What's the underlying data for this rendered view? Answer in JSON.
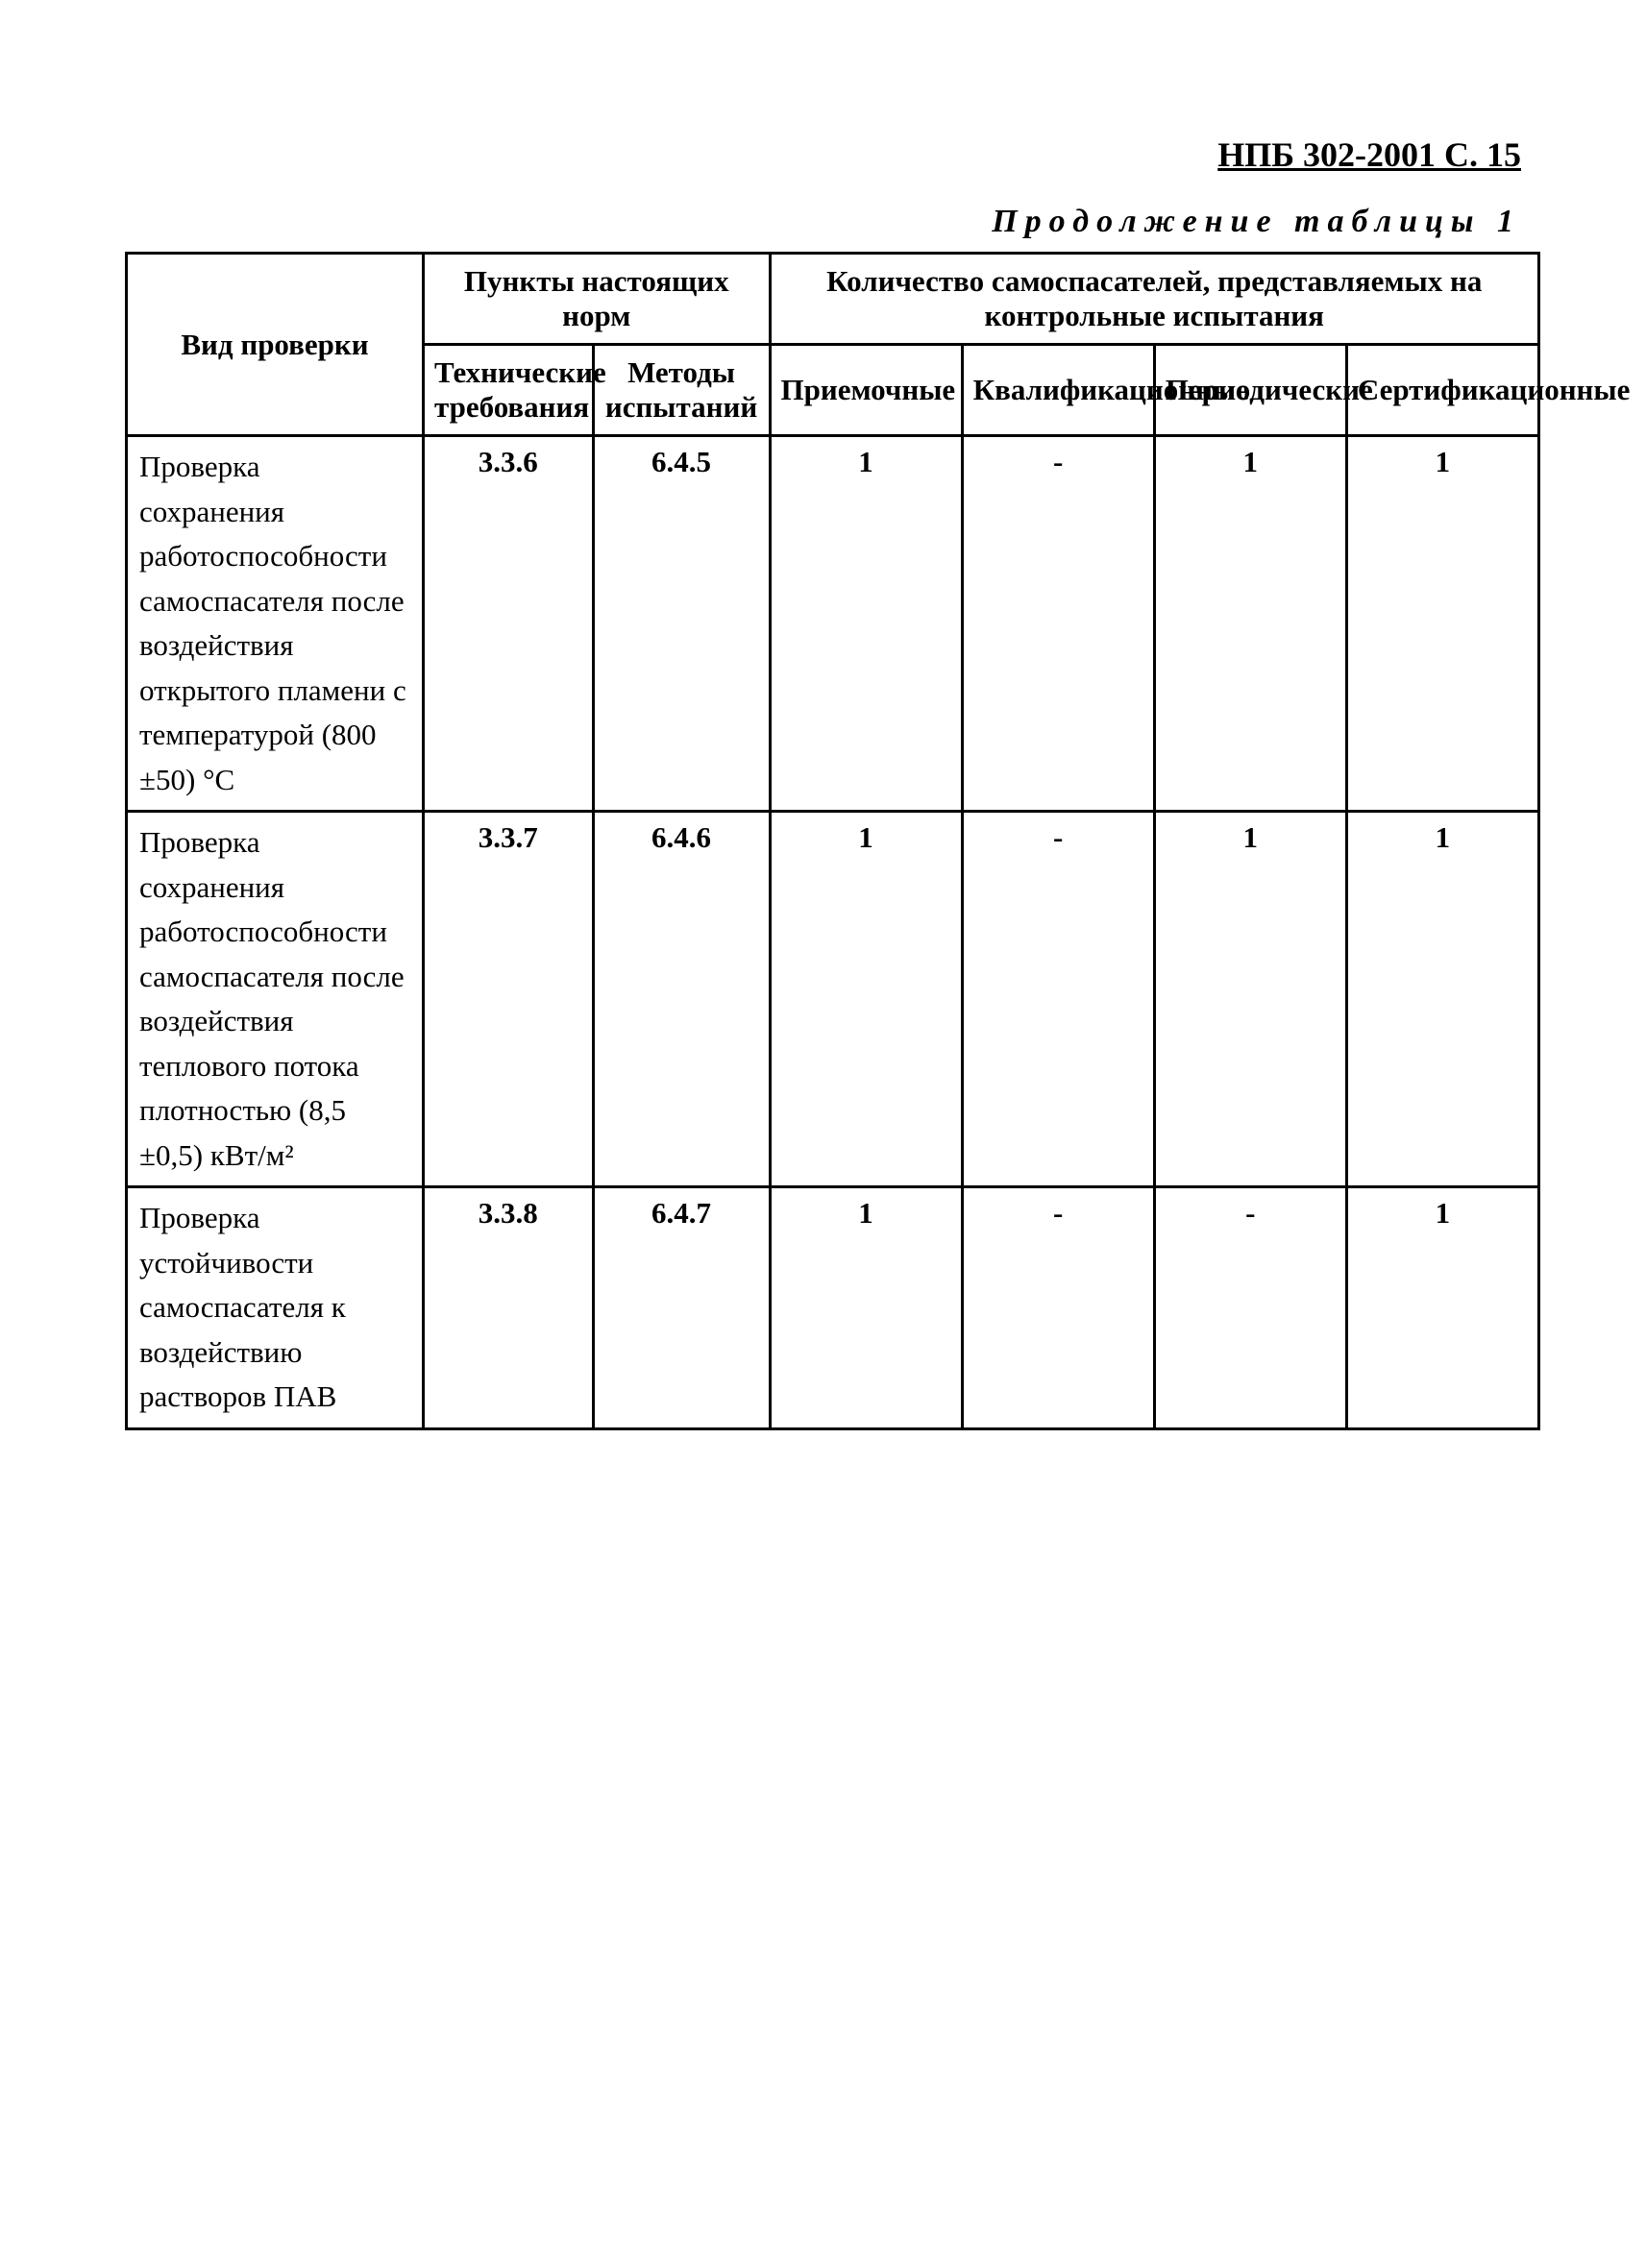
{
  "header": {
    "document_ref": "НПБ 302-2001 С. 15"
  },
  "table": {
    "caption": "Продолжение таблицы 1",
    "columns": {
      "vid": "Вид проверки",
      "group_norms": "Пункты настоящих норм",
      "group_tests": "Количество самоспасателей, представляемых на контрольные испытания",
      "tech": "Технические требования",
      "method": "Методы испытаний",
      "priem": "Приемочные",
      "kvalif": "Квалификационные",
      "period": "Периодические",
      "sertif": "Сертификационные"
    },
    "rows": [
      {
        "desc": "Проверка сохранения работоспособности самоспасателя после воздействия открытого пламени с температурой (800 ±50) °С",
        "tech": "3.3.6",
        "method": "6.4.5",
        "priem": "1",
        "kvalif": "-",
        "period": "1",
        "sertif": "1"
      },
      {
        "desc": "Проверка сохранения работоспособности самоспасателя после воздействия теплового потока плотностью (8,5 ±0,5) кВт/м²",
        "tech": "3.3.7",
        "method": "6.4.6",
        "priem": "1",
        "kvalif": "-",
        "period": "1",
        "sertif": "1"
      },
      {
        "desc": "Проверка устойчивости самоспасателя к воздействию растворов ПАВ",
        "tech": "3.3.8",
        "method": "6.4.7",
        "priem": "1",
        "kvalif": "-",
        "period": "-",
        "sertif": "1"
      }
    ],
    "border_color": "#000000",
    "background_color": "#ffffff",
    "font_size_header": 31,
    "font_size_body": 31
  }
}
